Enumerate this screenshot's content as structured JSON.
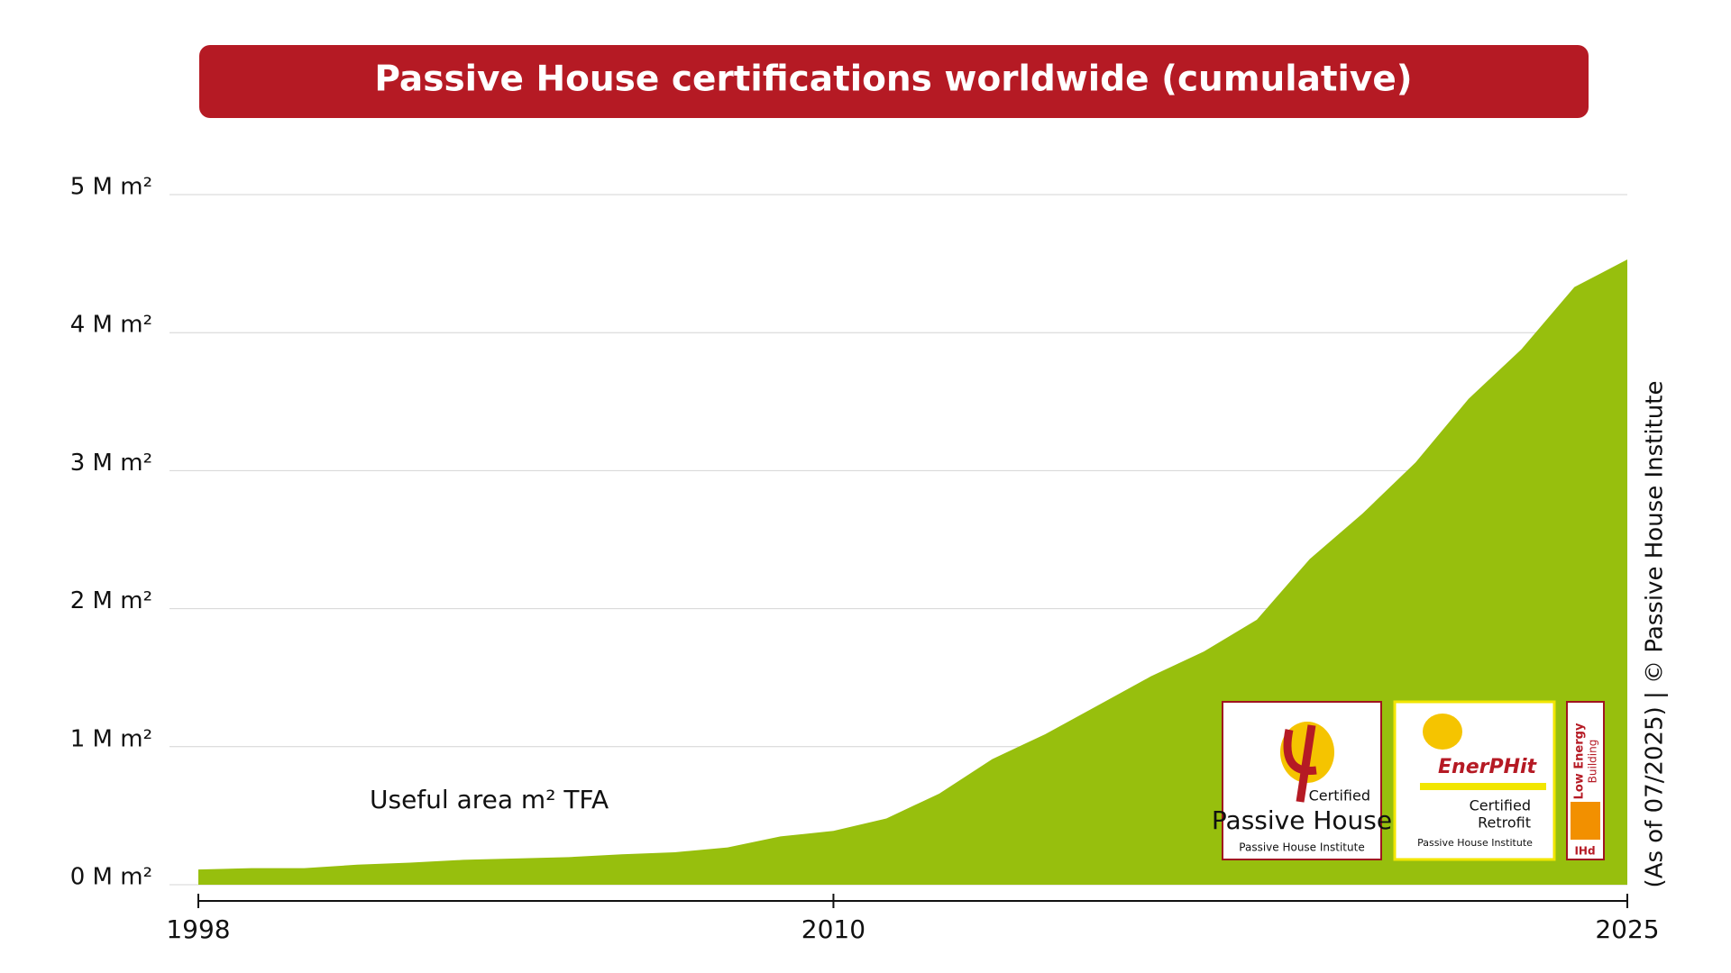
{
  "chart_data": {
    "type": "area",
    "title": "Passive House certifications worldwide (cumulative)",
    "annotation": "Useful area m² TFA",
    "side_note": "(As of 07/2025) | © Passive House Institute",
    "x": [
      1998,
      1999,
      2000,
      2001,
      2002,
      2003,
      2004,
      2005,
      2006,
      2007,
      2008,
      2009,
      2010,
      2011,
      2012,
      2013,
      2014,
      2015,
      2016,
      2017,
      2018,
      2019,
      2020,
      2021,
      2022,
      2023,
      2024,
      2025
    ],
    "values": [
      0.11,
      0.12,
      0.12,
      0.145,
      0.16,
      0.18,
      0.19,
      0.2,
      0.22,
      0.235,
      0.27,
      0.35,
      0.39,
      0.48,
      0.66,
      0.91,
      1.09,
      1.3,
      1.51,
      1.69,
      1.92,
      2.36,
      2.69,
      3.06,
      3.52,
      3.88,
      4.33,
      4.53
    ],
    "color": "#97bf0d",
    "xlim": [
      1998,
      2025
    ],
    "xticks": [
      1998,
      2010,
      2025
    ],
    "ylim": [
      0,
      5
    ],
    "yticks": [
      {
        "value": 0,
        "label": "0 M m²"
      },
      {
        "value": 1,
        "label": "1 M m²"
      },
      {
        "value": 2,
        "label": "2 M m²"
      },
      {
        "value": 3,
        "label": "3 M m²"
      },
      {
        "value": 4,
        "label": "4 M m²"
      },
      {
        "value": 5,
        "label": "5 M m²"
      }
    ],
    "grid": true
  },
  "logos": {
    "passive_house": {
      "line1": "Certified",
      "line2": "Passive House",
      "line3": "Passive House Institute"
    },
    "enerphit": {
      "line1": "EnerPHit",
      "line2": "Certified",
      "line3": "Retrofit",
      "line4": "Passive House Institute"
    },
    "low_energy": {
      "line1": "Low Energy",
      "line2": "Building",
      "line3": "IHd"
    }
  }
}
